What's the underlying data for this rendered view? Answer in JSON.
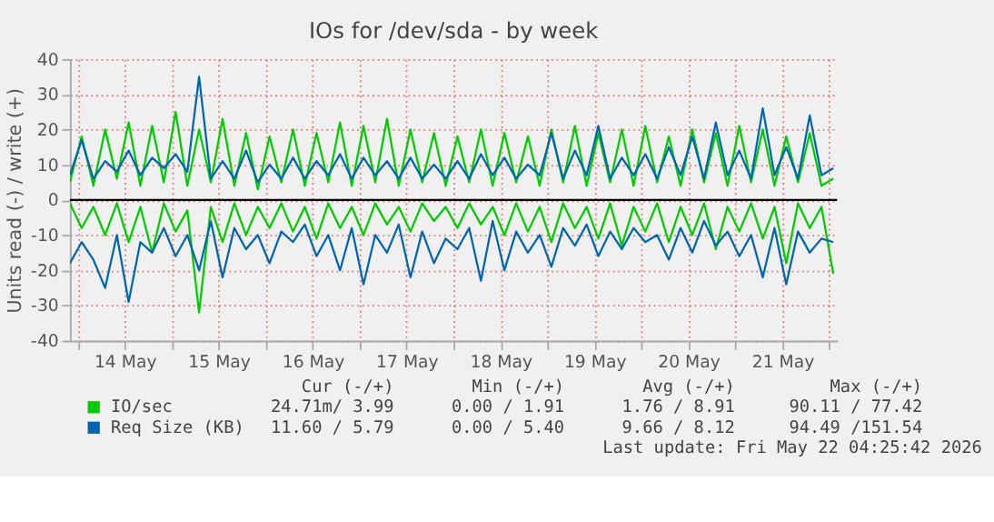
{
  "chart_data": {
    "type": "line",
    "title": "IOs for /dev/sda - by week",
    "ylabel": "Units read (-) / write (+)",
    "x": [
      "2026-05-13T22:00",
      "2026-05-14T01:00",
      "2026-05-14T04:00",
      "2026-05-14T07:00",
      "2026-05-14T10:00",
      "2026-05-14T13:00",
      "2026-05-14T16:00",
      "2026-05-14T19:00",
      "2026-05-14T22:00",
      "2026-05-15T01:00",
      "2026-05-15T04:00",
      "2026-05-15T07:00",
      "2026-05-15T10:00",
      "2026-05-15T13:00",
      "2026-05-15T16:00",
      "2026-05-15T19:00",
      "2026-05-15T22:00",
      "2026-05-16T01:00",
      "2026-05-16T04:00",
      "2026-05-16T07:00",
      "2026-05-16T10:00",
      "2026-05-16T13:00",
      "2026-05-16T16:00",
      "2026-05-16T19:00",
      "2026-05-16T22:00",
      "2026-05-17T01:00",
      "2026-05-17T04:00",
      "2026-05-17T07:00",
      "2026-05-17T10:00",
      "2026-05-17T13:00",
      "2026-05-17T16:00",
      "2026-05-17T19:00",
      "2026-05-17T22:00",
      "2026-05-18T01:00",
      "2026-05-18T04:00",
      "2026-05-18T07:00",
      "2026-05-18T10:00",
      "2026-05-18T13:00",
      "2026-05-18T16:00",
      "2026-05-18T19:00",
      "2026-05-18T22:00",
      "2026-05-19T01:00",
      "2026-05-19T04:00",
      "2026-05-19T07:00",
      "2026-05-19T10:00",
      "2026-05-19T13:00",
      "2026-05-19T16:00",
      "2026-05-19T19:00",
      "2026-05-19T22:00",
      "2026-05-20T01:00",
      "2026-05-20T04:00",
      "2026-05-20T07:00",
      "2026-05-20T10:00",
      "2026-05-20T13:00",
      "2026-05-20T16:00",
      "2026-05-20T19:00",
      "2026-05-20T22:00",
      "2026-05-21T01:00",
      "2026-05-21T04:00",
      "2026-05-21T07:00",
      "2026-05-21T10:00",
      "2026-05-21T13:00",
      "2026-05-21T16:00",
      "2026-05-21T19:00",
      "2026-05-21T22:00",
      "2026-05-22T01:00"
    ],
    "series": [
      {
        "color": "#00cc00",
        "values": [
          -1,
          -8,
          -2,
          -10,
          -1,
          -12,
          -2,
          -15,
          -1,
          -9,
          -3,
          -32,
          -2,
          -12,
          -1,
          -10,
          -2,
          -8,
          -1,
          -9,
          -2,
          -11,
          -1,
          -8,
          -2,
          -10,
          -1,
          -7,
          -2,
          -9,
          -1,
          -6,
          -2,
          -8,
          -1,
          -7,
          -2,
          -10,
          -1,
          -9,
          -2,
          -12,
          -1,
          -8,
          -2,
          -11,
          -1,
          -13,
          -2,
          -9,
          -1,
          -12,
          -2,
          -10,
          -1,
          -14,
          -2,
          -9,
          -1,
          -11,
          -2,
          -18,
          -1,
          -8,
          -2,
          -21
        ]
      },
      {
        "name": "IO/sec",
        "color": "#00cc00",
        "values": [
          5,
          18,
          4,
          20,
          6,
          22,
          4,
          21,
          5,
          25,
          4,
          20,
          5,
          23,
          4,
          19,
          3,
          18,
          5,
          20,
          4,
          19,
          5,
          22,
          4,
          21,
          5,
          23,
          4,
          20,
          5,
          19,
          4,
          18,
          5,
          20,
          4,
          19,
          5,
          18,
          4,
          20,
          5,
          21,
          4,
          19,
          5,
          20,
          4,
          21,
          5,
          18,
          4,
          20,
          5,
          19,
          4,
          21,
          5,
          20,
          4,
          18,
          5,
          19,
          4,
          6
        ]
      },
      {
        "color": "#0066b3",
        "values": [
          -18,
          -12,
          -17,
          -25,
          -10,
          -29,
          -12,
          -15,
          -8,
          -16,
          -10,
          -20,
          -6,
          -22,
          -8,
          -14,
          -10,
          -18,
          -9,
          -12,
          -7,
          -16,
          -10,
          -20,
          -8,
          -24,
          -10,
          -15,
          -7,
          -22,
          -9,
          -18,
          -11,
          -14,
          -8,
          -23,
          -6,
          -20,
          -9,
          -15,
          -10,
          -19,
          -8,
          -13,
          -7,
          -16,
          -9,
          -14,
          -8,
          -12,
          -10,
          -17,
          -8,
          -15,
          -6,
          -13,
          -9,
          -16,
          -10,
          -22,
          -8,
          -24,
          -9,
          -15,
          -11,
          -12
        ]
      },
      {
        "name": "Req Size (KB)",
        "color": "#0066b3",
        "values": [
          7,
          17,
          6,
          11,
          8,
          14,
          7,
          12,
          9,
          13,
          8,
          35,
          6,
          11,
          6,
          14,
          5,
          10,
          6,
          12,
          6,
          11,
          7,
          13,
          6,
          12,
          7,
          11,
          6,
          12,
          6,
          10,
          6,
          11,
          6,
          13,
          7,
          12,
          6,
          10,
          7,
          19,
          6,
          14,
          7,
          21,
          6,
          12,
          7,
          13,
          6,
          15,
          7,
          18,
          6,
          22,
          7,
          14,
          6,
          26,
          7,
          15,
          6,
          24,
          7,
          9
        ]
      }
    ],
    "xlim": [
      "2026-05-13T22:00",
      "2026-05-22T02:00"
    ],
    "xticks": [
      {
        "value": "2026-05-14T00:00",
        "label": null
      },
      {
        "value": "2026-05-14T12:00",
        "label": "14 May"
      },
      {
        "value": "2026-05-15T00:00",
        "label": null
      },
      {
        "value": "2026-05-15T12:00",
        "label": "15 May"
      },
      {
        "value": "2026-05-16T00:00",
        "label": null
      },
      {
        "value": "2026-05-16T12:00",
        "label": "16 May"
      },
      {
        "value": "2026-05-17T00:00",
        "label": null
      },
      {
        "value": "2026-05-17T12:00",
        "label": "17 May"
      },
      {
        "value": "2026-05-18T00:00",
        "label": null
      },
      {
        "value": "2026-05-18T12:00",
        "label": "18 May"
      },
      {
        "value": "2026-05-19T00:00",
        "label": null
      },
      {
        "value": "2026-05-19T12:00",
        "label": "19 May"
      },
      {
        "value": "2026-05-20T00:00",
        "label": null
      },
      {
        "value": "2026-05-20T12:00",
        "label": "20 May"
      },
      {
        "value": "2026-05-21T00:00",
        "label": null
      },
      {
        "value": "2026-05-21T12:00",
        "label": "21 May"
      },
      {
        "value": "2026-05-22T00:00",
        "label": null
      }
    ],
    "ylim": [
      -40,
      40
    ],
    "yticks": [
      -40,
      -30,
      -20,
      -10,
      0,
      10,
      20,
      30,
      40
    ],
    "grid": true,
    "legend": "bottom",
    "marker": "none",
    "line_style": "solid",
    "ref_lines": [
      {
        "axis": "y",
        "value": 0,
        "color": "#000000"
      }
    ],
    "annotations": [
      "Cur (-/+)",
      "Min (-/+)",
      "Avg (-/+)",
      "Max (-/+)",
      "24.71m/  3.99",
      "0.00 /  1.91",
      "1.76 /  8.91",
      "90.11 / 77.42",
      "11.60 /  5.79",
      "0.00 /  5.40",
      "9.66 /  8.12",
      "94.49 /151.54",
      "Last update: Fri May 22 04:25:42 2026"
    ]
  }
}
